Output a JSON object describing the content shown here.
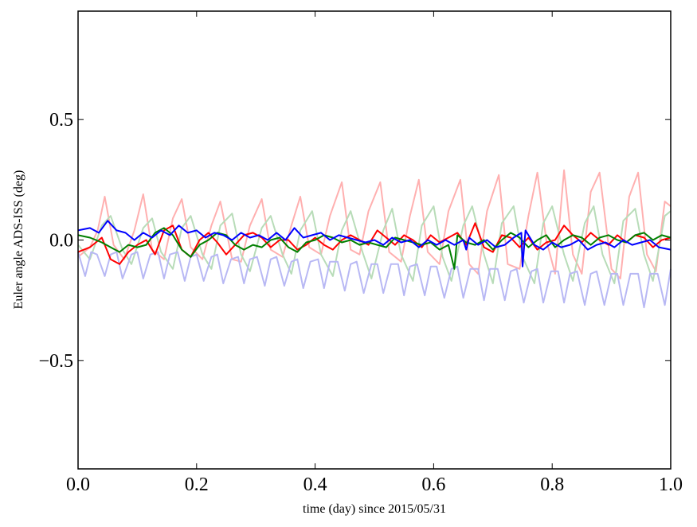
{
  "chart_data": {
    "type": "line",
    "title": "",
    "xlabel": "time (day) since 2015/05/31",
    "ylabel": "Euler angle ADS-ISS (deg)",
    "xlim": [
      0.0,
      1.0
    ],
    "ylim": [
      -0.95,
      0.95
    ],
    "xticks": [
      0.0,
      0.2,
      0.4,
      0.6,
      0.8,
      1.0
    ],
    "xtick_labels": [
      "0.0",
      "0.2",
      "0.4",
      "0.6",
      "0.8",
      "1.0"
    ],
    "yticks": [
      -0.5,
      0.0,
      0.5
    ],
    "ytick_labels": [
      "−0.5",
      "0.0",
      "0.5"
    ],
    "grid": false,
    "series": [
      {
        "color": "#ffb0b0",
        "width": 2,
        "x": [
          0.0,
          0.02,
          0.033,
          0.045,
          0.06,
          0.078,
          0.095,
          0.11,
          0.125,
          0.145,
          0.16,
          0.175,
          0.19,
          0.21,
          0.225,
          0.24,
          0.26,
          0.275,
          0.29,
          0.31,
          0.325,
          0.345,
          0.36,
          0.375,
          0.39,
          0.41,
          0.425,
          0.445,
          0.46,
          0.475,
          0.49,
          0.51,
          0.525,
          0.545,
          0.56,
          0.575,
          0.59,
          0.61,
          0.625,
          0.645,
          0.66,
          0.675,
          0.69,
          0.71,
          0.725,
          0.745,
          0.76,
          0.775,
          0.79,
          0.805,
          0.82,
          0.835,
          0.85,
          0.865,
          0.88,
          0.9,
          0.915,
          0.93,
          0.945,
          0.96,
          0.975,
          0.99,
          1.0
        ],
        "y": [
          -0.07,
          -0.03,
          0.04,
          0.18,
          -0.02,
          -0.08,
          0.04,
          0.19,
          -0.04,
          -0.08,
          0.09,
          0.17,
          -0.03,
          -0.08,
          0.06,
          0.16,
          -0.08,
          -0.09,
          0.06,
          0.17,
          -0.04,
          -0.07,
          0.06,
          0.18,
          -0.03,
          -0.06,
          0.1,
          0.24,
          -0.04,
          -0.06,
          0.12,
          0.24,
          -0.05,
          -0.09,
          0.1,
          0.25,
          -0.05,
          -0.1,
          0.12,
          0.25,
          -0.1,
          -0.14,
          0.12,
          0.27,
          -0.1,
          -0.12,
          0.1,
          0.28,
          0.0,
          -0.14,
          0.29,
          -0.06,
          -0.14,
          0.2,
          0.28,
          -0.12,
          -0.16,
          0.18,
          0.28,
          -0.06,
          -0.13,
          0.16,
          0.14
        ]
      },
      {
        "color": "#b8dcb8",
        "width": 2,
        "x": [
          0.0,
          0.02,
          0.04,
          0.055,
          0.075,
          0.09,
          0.11,
          0.125,
          0.14,
          0.16,
          0.175,
          0.19,
          0.21,
          0.225,
          0.24,
          0.26,
          0.275,
          0.29,
          0.31,
          0.325,
          0.345,
          0.36,
          0.375,
          0.395,
          0.41,
          0.43,
          0.445,
          0.46,
          0.48,
          0.495,
          0.515,
          0.53,
          0.545,
          0.565,
          0.58,
          0.6,
          0.615,
          0.63,
          0.65,
          0.665,
          0.685,
          0.7,
          0.715,
          0.735,
          0.75,
          0.77,
          0.785,
          0.8,
          0.82,
          0.835,
          0.855,
          0.87,
          0.885,
          0.905,
          0.92,
          0.94,
          0.955,
          0.97,
          0.99,
          1.0
        ],
        "y": [
          -0.02,
          -0.08,
          0.06,
          0.1,
          -0.04,
          -0.1,
          0.05,
          0.09,
          -0.05,
          -0.12,
          0.05,
          0.1,
          -0.06,
          -0.12,
          0.06,
          0.11,
          -0.06,
          -0.13,
          0.05,
          0.1,
          -0.06,
          -0.14,
          0.04,
          0.12,
          -0.06,
          -0.15,
          0.04,
          0.12,
          -0.05,
          -0.16,
          0.04,
          0.13,
          -0.06,
          -0.17,
          0.06,
          0.14,
          -0.07,
          -0.17,
          0.06,
          0.14,
          -0.06,
          -0.18,
          0.07,
          0.14,
          -0.07,
          -0.18,
          0.07,
          0.14,
          -0.06,
          -0.17,
          0.07,
          0.14,
          -0.06,
          -0.18,
          0.08,
          0.13,
          -0.06,
          -0.17,
          0.1,
          0.12
        ]
      },
      {
        "color": "#b8b8f4",
        "width": 2,
        "x": [
          0.0,
          0.012,
          0.022,
          0.032,
          0.045,
          0.055,
          0.065,
          0.075,
          0.09,
          0.1,
          0.11,
          0.122,
          0.135,
          0.145,
          0.155,
          0.168,
          0.18,
          0.19,
          0.2,
          0.212,
          0.225,
          0.235,
          0.245,
          0.258,
          0.27,
          0.28,
          0.29,
          0.302,
          0.315,
          0.325,
          0.335,
          0.348,
          0.36,
          0.37,
          0.38,
          0.392,
          0.405,
          0.415,
          0.425,
          0.438,
          0.45,
          0.46,
          0.47,
          0.482,
          0.495,
          0.505,
          0.515,
          0.528,
          0.54,
          0.55,
          0.56,
          0.572,
          0.585,
          0.595,
          0.605,
          0.618,
          0.63,
          0.64,
          0.65,
          0.662,
          0.675,
          0.685,
          0.695,
          0.708,
          0.72,
          0.73,
          0.74,
          0.752,
          0.765,
          0.775,
          0.785,
          0.798,
          0.81,
          0.82,
          0.83,
          0.842,
          0.855,
          0.865,
          0.875,
          0.888,
          0.9,
          0.91,
          0.92,
          0.932,
          0.945,
          0.955,
          0.965,
          0.978,
          0.99,
          1.0
        ],
        "y": [
          -0.05,
          -0.15,
          -0.05,
          -0.06,
          -0.15,
          -0.06,
          -0.05,
          -0.16,
          -0.06,
          -0.05,
          -0.16,
          -0.06,
          -0.05,
          -0.16,
          -0.06,
          -0.05,
          -0.17,
          -0.07,
          -0.06,
          -0.17,
          -0.07,
          -0.06,
          -0.18,
          -0.08,
          -0.07,
          -0.18,
          -0.08,
          -0.07,
          -0.19,
          -0.08,
          -0.07,
          -0.19,
          -0.09,
          -0.08,
          -0.2,
          -0.09,
          -0.08,
          -0.2,
          -0.09,
          -0.09,
          -0.21,
          -0.1,
          -0.09,
          -0.22,
          -0.1,
          -0.1,
          -0.22,
          -0.1,
          -0.1,
          -0.23,
          -0.11,
          -0.1,
          -0.23,
          -0.11,
          -0.11,
          -0.24,
          -0.12,
          -0.11,
          -0.24,
          -0.12,
          -0.12,
          -0.25,
          -0.12,
          -0.12,
          -0.25,
          -0.13,
          -0.12,
          -0.26,
          -0.13,
          -0.12,
          -0.26,
          -0.13,
          -0.13,
          -0.26,
          -0.14,
          -0.13,
          -0.27,
          -0.14,
          -0.13,
          -0.27,
          -0.14,
          -0.14,
          -0.27,
          -0.14,
          -0.14,
          -0.28,
          -0.14,
          -0.14,
          -0.27,
          -0.12
        ]
      },
      {
        "color": "#ff0000",
        "width": 2,
        "x": [
          0.0,
          0.02,
          0.04,
          0.055,
          0.07,
          0.085,
          0.1,
          0.115,
          0.13,
          0.145,
          0.16,
          0.175,
          0.19,
          0.205,
          0.22,
          0.235,
          0.25,
          0.265,
          0.28,
          0.295,
          0.31,
          0.325,
          0.34,
          0.355,
          0.37,
          0.385,
          0.4,
          0.415,
          0.43,
          0.445,
          0.46,
          0.475,
          0.49,
          0.505,
          0.52,
          0.535,
          0.55,
          0.565,
          0.58,
          0.595,
          0.61,
          0.625,
          0.64,
          0.655,
          0.67,
          0.685,
          0.7,
          0.715,
          0.73,
          0.745,
          0.76,
          0.775,
          0.79,
          0.805,
          0.82,
          0.835,
          0.85,
          0.865,
          0.88,
          0.895,
          0.91,
          0.925,
          0.94,
          0.955,
          0.97,
          0.985,
          1.0
        ],
        "y": [
          -0.05,
          -0.03,
          0.01,
          -0.08,
          -0.1,
          -0.05,
          -0.02,
          0.0,
          -0.06,
          0.04,
          0.06,
          -0.04,
          -0.07,
          0.0,
          0.03,
          -0.01,
          -0.06,
          -0.02,
          0.02,
          0.03,
          0.01,
          -0.03,
          0.0,
          0.0,
          -0.04,
          -0.02,
          0.01,
          -0.02,
          -0.04,
          0.0,
          0.02,
          0.0,
          -0.02,
          0.04,
          0.01,
          -0.02,
          0.02,
          0.0,
          -0.03,
          0.02,
          -0.01,
          0.01,
          0.03,
          -0.02,
          0.07,
          -0.03,
          -0.05,
          0.02,
          0.01,
          -0.03,
          0.01,
          -0.04,
          -0.01,
          0.0,
          0.06,
          0.02,
          -0.01,
          0.03,
          0.0,
          -0.02,
          0.02,
          -0.01,
          0.02,
          0.01,
          -0.03,
          0.0,
          0.01
        ]
      },
      {
        "color": "#008000",
        "width": 2,
        "x": [
          0.0,
          0.02,
          0.04,
          0.055,
          0.07,
          0.085,
          0.1,
          0.115,
          0.13,
          0.145,
          0.16,
          0.175,
          0.19,
          0.205,
          0.22,
          0.235,
          0.25,
          0.265,
          0.28,
          0.295,
          0.31,
          0.325,
          0.34,
          0.355,
          0.37,
          0.385,
          0.4,
          0.415,
          0.43,
          0.445,
          0.46,
          0.475,
          0.49,
          0.505,
          0.52,
          0.535,
          0.55,
          0.565,
          0.58,
          0.595,
          0.61,
          0.625,
          0.635,
          0.64,
          0.655,
          0.67,
          0.685,
          0.7,
          0.715,
          0.73,
          0.745,
          0.76,
          0.775,
          0.79,
          0.805,
          0.82,
          0.835,
          0.85,
          0.865,
          0.88,
          0.895,
          0.91,
          0.925,
          0.94,
          0.955,
          0.97,
          0.985,
          1.0
        ],
        "y": [
          0.02,
          0.01,
          -0.01,
          -0.03,
          -0.05,
          -0.02,
          -0.03,
          -0.02,
          0.03,
          0.05,
          0.02,
          -0.04,
          -0.07,
          -0.02,
          0.0,
          0.03,
          0.02,
          -0.02,
          -0.04,
          -0.02,
          -0.03,
          0.0,
          0.01,
          -0.03,
          -0.05,
          -0.01,
          0.0,
          0.02,
          0.01,
          -0.01,
          0.0,
          -0.02,
          -0.01,
          -0.02,
          -0.03,
          0.01,
          0.0,
          -0.01,
          -0.02,
          -0.01,
          -0.04,
          -0.02,
          -0.12,
          0.02,
          -0.01,
          -0.02,
          0.0,
          -0.04,
          0.0,
          0.03,
          0.01,
          -0.03,
          0.0,
          0.02,
          -0.03,
          0.0,
          0.02,
          0.01,
          -0.02,
          0.01,
          0.02,
          0.0,
          -0.01,
          0.02,
          0.03,
          0.0,
          0.02,
          0.01
        ]
      },
      {
        "color": "#0000ff",
        "width": 2,
        "x": [
          0.0,
          0.02,
          0.035,
          0.05,
          0.065,
          0.08,
          0.095,
          0.11,
          0.125,
          0.14,
          0.155,
          0.17,
          0.185,
          0.2,
          0.215,
          0.23,
          0.245,
          0.26,
          0.275,
          0.29,
          0.305,
          0.32,
          0.335,
          0.35,
          0.365,
          0.38,
          0.395,
          0.41,
          0.425,
          0.44,
          0.455,
          0.47,
          0.485,
          0.5,
          0.515,
          0.53,
          0.545,
          0.56,
          0.575,
          0.59,
          0.605,
          0.62,
          0.635,
          0.65,
          0.655,
          0.66,
          0.675,
          0.69,
          0.705,
          0.72,
          0.735,
          0.748,
          0.75,
          0.755,
          0.77,
          0.785,
          0.8,
          0.815,
          0.83,
          0.845,
          0.86,
          0.875,
          0.89,
          0.905,
          0.92,
          0.935,
          0.95,
          0.965,
          0.98,
          1.0
        ],
        "y": [
          0.04,
          0.05,
          0.03,
          0.08,
          0.04,
          0.03,
          0.0,
          0.03,
          0.01,
          0.04,
          0.02,
          0.06,
          0.03,
          0.04,
          0.01,
          0.03,
          0.02,
          0.0,
          0.03,
          0.01,
          0.02,
          0.0,
          0.03,
          0.0,
          0.05,
          0.01,
          0.02,
          0.03,
          0.0,
          0.02,
          0.01,
          0.0,
          -0.01,
          0.0,
          -0.02,
          0.01,
          -0.01,
          0.0,
          -0.03,
          0.0,
          -0.02,
          0.0,
          -0.02,
          0.0,
          -0.04,
          0.01,
          -0.02,
          0.0,
          -0.03,
          -0.02,
          0.01,
          0.03,
          -0.11,
          0.04,
          -0.02,
          -0.04,
          -0.01,
          -0.03,
          -0.02,
          0.0,
          -0.04,
          -0.02,
          -0.01,
          -0.03,
          0.0,
          -0.02,
          -0.01,
          0.0,
          -0.03,
          -0.04
        ]
      }
    ]
  }
}
